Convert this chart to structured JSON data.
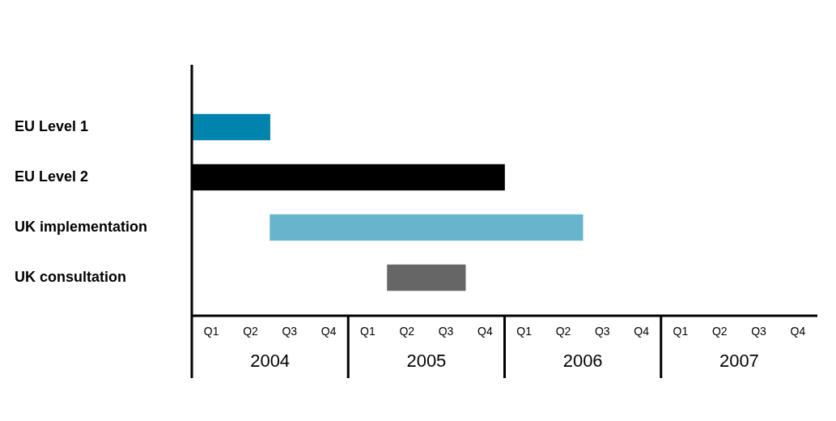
{
  "chart_data": {
    "type": "bar",
    "orientation": "horizontal",
    "categories": [
      "EU Level 1",
      "EU Level 2",
      "UK implementation",
      "UK consultation"
    ],
    "base": [
      2003.5,
      2003.5,
      2004,
      2004.75
    ],
    "values": [
      0.5,
      2,
      2,
      0.5
    ],
    "colors": [
      "#0083ad",
      "#000000",
      "#67b4cd",
      "#666666"
    ],
    "xlim": [
      2003.5,
      2007.5
    ],
    "xticks": [
      2004,
      2005,
      2006,
      2007
    ],
    "annotations": [
      "Q1",
      "Q2",
      "Q3",
      "Q4",
      "Q1",
      "Q2",
      "Q3",
      "Q4",
      "Q1",
      "Q2",
      "Q3",
      "Q4",
      "Q1",
      "Q2",
      "Q3",
      "Q4"
    ]
  }
}
